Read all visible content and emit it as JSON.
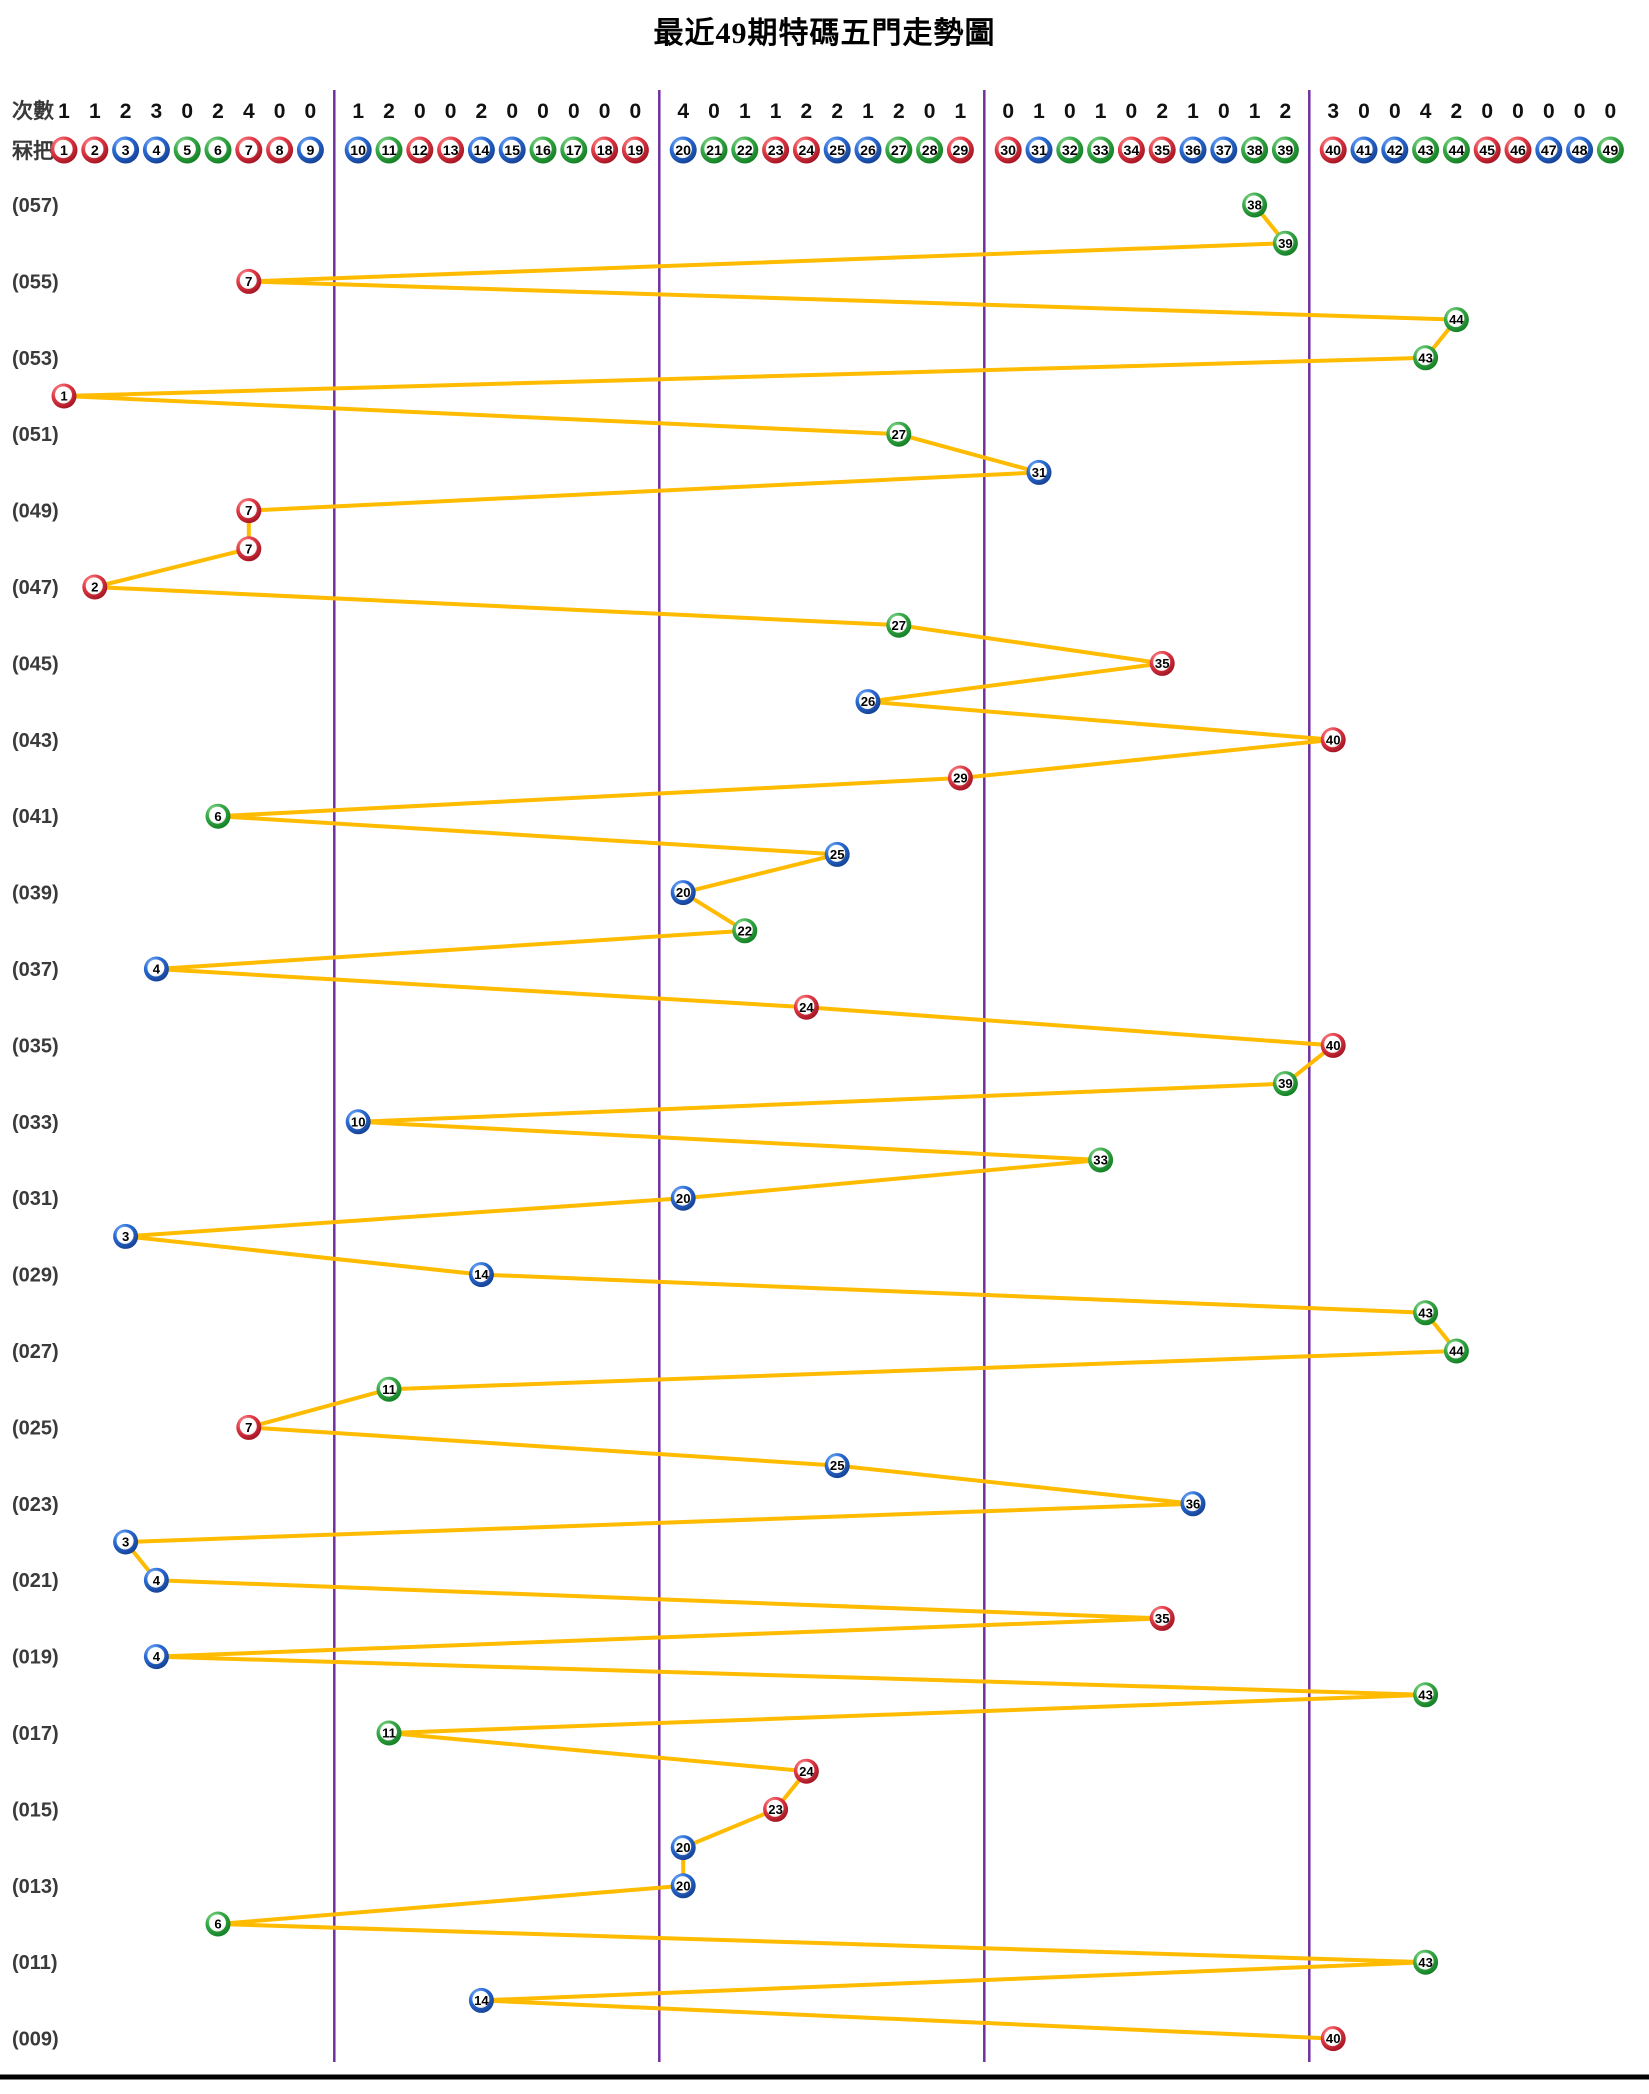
{
  "title": "最近49期特碼五門走勢圖",
  "header": {
    "counts_label": "次數",
    "balls_label": "冧把"
  },
  "chart_data": {
    "type": "scatter",
    "title": "最近49期特碼五門走勢圖",
    "xlabel": "",
    "ylabel": "",
    "x_range": [
      1,
      49
    ],
    "grid": false,
    "column_groups": [
      [
        1,
        9
      ],
      [
        10,
        19
      ],
      [
        20,
        29
      ],
      [
        30,
        39
      ],
      [
        40,
        49
      ]
    ],
    "counts": [
      1,
      1,
      2,
      3,
      0,
      2,
      4,
      0,
      0,
      1,
      2,
      0,
      0,
      2,
      0,
      0,
      0,
      0,
      0,
      4,
      0,
      1,
      1,
      2,
      2,
      1,
      2,
      0,
      1,
      0,
      1,
      0,
      1,
      0,
      2,
      1,
      0,
      1,
      2,
      3,
      0,
      0,
      4,
      2,
      0,
      0,
      0,
      0,
      0
    ],
    "rows": [
      {
        "label": "(057)",
        "number": 38
      },
      {
        "label": "",
        "number": 39
      },
      {
        "label": "(055)",
        "number": 7
      },
      {
        "label": "",
        "number": 44
      },
      {
        "label": "(053)",
        "number": 43
      },
      {
        "label": "",
        "number": 1
      },
      {
        "label": "(051)",
        "number": 27
      },
      {
        "label": "",
        "number": 31
      },
      {
        "label": "(049)",
        "number": 7
      },
      {
        "label": "",
        "number": 7
      },
      {
        "label": "(047)",
        "number": 2
      },
      {
        "label": "",
        "number": 27
      },
      {
        "label": "(045)",
        "number": 35
      },
      {
        "label": "",
        "number": 26
      },
      {
        "label": "(043)",
        "number": 40
      },
      {
        "label": "",
        "number": 29
      },
      {
        "label": "(041)",
        "number": 6
      },
      {
        "label": "",
        "number": 25
      },
      {
        "label": "(039)",
        "number": 20
      },
      {
        "label": "",
        "number": 22
      },
      {
        "label": "(037)",
        "number": 4
      },
      {
        "label": "",
        "number": 24
      },
      {
        "label": "(035)",
        "number": 40
      },
      {
        "label": "",
        "number": 39
      },
      {
        "label": "(033)",
        "number": 10
      },
      {
        "label": "",
        "number": 33
      },
      {
        "label": "(031)",
        "number": 20
      },
      {
        "label": "",
        "number": 3
      },
      {
        "label": "(029)",
        "number": 14
      },
      {
        "label": "",
        "number": 43
      },
      {
        "label": "(027)",
        "number": 44
      },
      {
        "label": "",
        "number": 11
      },
      {
        "label": "(025)",
        "number": 7
      },
      {
        "label": "",
        "number": 25
      },
      {
        "label": "(023)",
        "number": 36
      },
      {
        "label": "",
        "number": 3
      },
      {
        "label": "(021)",
        "number": 4
      },
      {
        "label": "",
        "number": 35
      },
      {
        "label": "(019)",
        "number": 4
      },
      {
        "label": "",
        "number": 43
      },
      {
        "label": "(017)",
        "number": 11
      },
      {
        "label": "",
        "number": 24
      },
      {
        "label": "(015)",
        "number": 23
      },
      {
        "label": "",
        "number": 20
      },
      {
        "label": "(013)",
        "number": 20
      },
      {
        "label": "",
        "number": 6
      },
      {
        "label": "(011)",
        "number": 43
      },
      {
        "label": "",
        "number": 14
      },
      {
        "label": "(009)",
        "number": 40
      }
    ],
    "ball_colors": {
      "red": [
        1,
        2,
        7,
        8,
        12,
        13,
        18,
        19,
        23,
        24,
        29,
        30,
        34,
        35,
        40,
        45,
        46
      ],
      "blue": [
        3,
        4,
        9,
        10,
        14,
        15,
        20,
        25,
        26,
        31,
        36,
        37,
        41,
        42,
        47,
        48
      ],
      "green": [
        5,
        6,
        11,
        16,
        17,
        21,
        22,
        27,
        28,
        32,
        33,
        38,
        39,
        43,
        44,
        49
      ]
    },
    "colors": {
      "line": "#FFBB00",
      "divider": "#7030A0",
      "red": "#D0202F",
      "blue": "#1E5EC8",
      "green": "#2E9F3C",
      "label": "#3A3A3A",
      "counts": "#111111",
      "bottom_border": "#000000"
    },
    "legend_position": "none"
  }
}
